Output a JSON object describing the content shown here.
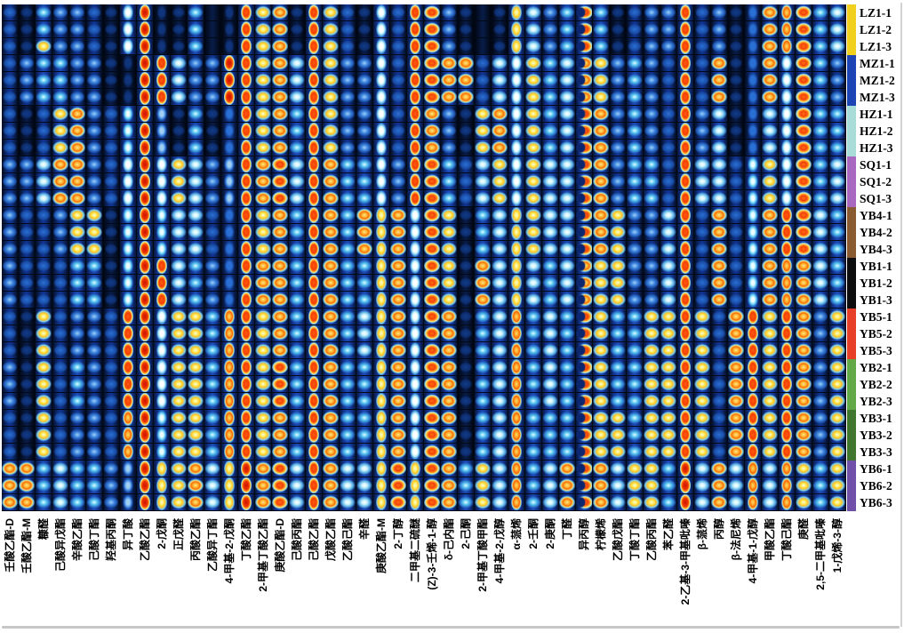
{
  "figure": {
    "description": "GC-IMS gallery plot: volatile compound signal heatmap of 30 liquor samples (rows) x 50 compounds (columns)"
  },
  "chart_data": {
    "type": "heatmap",
    "rows": [
      "LZ1-1",
      "LZ1-2",
      "LZ1-3",
      "MZ1-1",
      "MZ1-2",
      "MZ1-3",
      "HZ1-1",
      "HZ1-2",
      "HZ1-3",
      "SQ1-1",
      "SQ1-2",
      "SQ1-3",
      "YB4-1",
      "YB4-2",
      "YB4-3",
      "YB1-1",
      "YB1-2",
      "YB1-3",
      "YB5-1",
      "YB5-2",
      "YB5-3",
      "YB2-1",
      "YB2-2",
      "YB2-3",
      "YB3-1",
      "YB3-2",
      "YB3-3",
      "YB6-1",
      "YB6-2",
      "YB6-3"
    ],
    "row_groups": [
      {
        "name": "LZ1",
        "color": "#f0d01c"
      },
      {
        "name": "MZ1",
        "color": "#1c44b4"
      },
      {
        "name": "HZ1",
        "color": "#a8dcd8"
      },
      {
        "name": "SQ1",
        "color": "#a868c0"
      },
      {
        "name": "YB4",
        "color": "#8a5a30"
      },
      {
        "name": "YB1",
        "color": "#0d0d0d"
      },
      {
        "name": "YB5",
        "color": "#e84028"
      },
      {
        "name": "YB2",
        "color": "#62a846"
      },
      {
        "name": "YB3",
        "color": "#40762e"
      },
      {
        "name": "YB6",
        "color": "#7050a8"
      }
    ],
    "columns": [
      "壬酸乙酯-D",
      "壬酸乙酯-M",
      "糠醛",
      "己酸异戊酯",
      "辛酸乙酯",
      "己酸丁酯",
      "羟基丙酮",
      "异丁酸",
      "乙酸乙酯",
      "2-戊酮",
      "正戊醛",
      "丙酸乙酯",
      "乙酸异丁酯",
      "4-甲基-2-戊酮",
      "丁酸乙酯",
      "2-甲基丁酸乙酯",
      "庚酸乙酯-D",
      "己酸丙酯",
      "己酸乙酯",
      "戊酸乙酯",
      "乙酸己酯",
      "辛醛",
      "庚酸乙酯-M",
      "2-丁醇",
      "二甲基二硫醚",
      "(Z)-3-壬烯-1-醇",
      "δ-己内酯",
      "2-己酮",
      "2-甲基丁酸甲酯",
      "4-甲基-2-戊醇",
      "α-蒎烯",
      "2-壬酮",
      "2-庚酮",
      "丁醛",
      "异丙醇",
      "柠檬烯",
      "乙酸戊酯",
      "丁酸丁酯",
      "乙酸丙酯",
      "苯乙醛",
      "2-乙基-3-甲基吡嗪",
      "β-蒎烯",
      "丙醇",
      "β-法尼烯",
      "4-甲基-1-戊醇",
      "甲酸乙酯",
      "丁酸己酯",
      "庚醛",
      "2,5-二甲基吡嗪",
      "1-戊烯-3-醇"
    ],
    "intensity_scale": "0=background(dark navy) .. 9=max(red); digits map to GC-IMS signal intensity colormap dark-blue->blue->cyan->white->yellow->orange->red",
    "bar_shaped_columns": [
      8,
      9,
      10,
      14,
      15,
      19,
      23,
      25,
      31,
      41,
      45,
      47
    ],
    "crescent_shaped_columns": [
      35
    ],
    "values": [
      "21433215911401867186215288310165348412338231277845",
      "21433215911401867186215288310165348412338231277845",
      "21633215911401867186215288310165348412338231277845",
      "23443311985339867586335288772556457634328271275843",
      "23443311985339867586335288772556457634328271275843",
      "23443311985339867586335288772556457634328271275843",
      "21267324931412867486335287316756458734328351255844",
      "21267324931412867486335287316756458734328351255844",
      "21267324931412867486335287316756458734328351255844",
      "33577325956533878587445388425656558734428552465845",
      "33577325956533878587445388425656558734428552465845",
      "33577325956533878587445388425656558734428552465845",
      "32236614945522867487476758614566558763358272478854",
      "32236614945522867487476758614566558763358272478854",
      "32236614945522867487476758614566558763358272478854",
      "32224414985432877487446758617565457663358272477754",
      "32224414985432877487446758617565457663358272477754",
      "32224414985432877487446758617565457663358272477754",
      "21623328956647867487456758714574548644668627868736",
      "21623328956647867487456758714574548644668627868736",
      "21623328956647867487456758714574548644668627868736",
      "31624328956647868487446758714574548644668627868736",
      "31624328956647868487446758714574548644668627868736",
      "31624328956647868487446758714574548644668627868736",
      "21623327946647867487446758714574448664668627868736",
      "21623327946647867487446758714574448664668627868736",
      "21623327946647867487446758714574448664668627868736",
      "77454433966756978587556868746574578756649575757646",
      "77454433966756978587556868746574578756649575757646",
      "77454433966756978587556868746574578756649575757646"
    ]
  }
}
